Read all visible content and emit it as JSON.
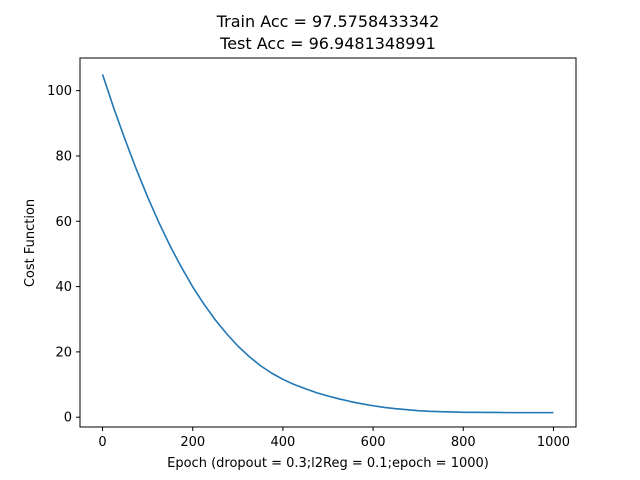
{
  "chart_data": {
    "type": "line",
    "title_lines": [
      "Train Acc = 97.5758433342",
      "Test Acc = 96.9481348991"
    ],
    "xlabel": "Epoch (dropout = 0.3;l2Reg = 0.1;epoch = 1000)",
    "ylabel": "Cost Function",
    "xlim": [
      -50,
      1050
    ],
    "ylim": [
      -3,
      110
    ],
    "xticks": [
      0,
      200,
      400,
      600,
      800,
      1000
    ],
    "yticks": [
      0,
      20,
      40,
      60,
      80,
      100
    ],
    "grid": false,
    "legend": "none",
    "series": [
      {
        "color": "#1f77b4",
        "x": [
          0,
          25,
          50,
          75,
          100,
          125,
          150,
          175,
          200,
          225,
          250,
          275,
          300,
          325,
          350,
          375,
          400,
          425,
          450,
          475,
          500,
          525,
          550,
          575,
          600,
          625,
          650,
          675,
          700,
          725,
          750,
          775,
          800,
          825,
          850,
          875,
          900,
          925,
          950,
          975,
          1000
        ],
        "y": [
          105,
          94.6,
          85.0,
          75.9,
          67.4,
          59.6,
          52.4,
          45.9,
          39.9,
          34.6,
          29.8,
          25.6,
          21.8,
          18.6,
          15.8,
          13.5,
          11.6,
          10.0,
          8.7,
          7.5,
          6.5,
          5.6,
          4.8,
          4.1,
          3.5,
          3.0,
          2.6,
          2.3,
          2.0,
          1.8,
          1.7,
          1.6,
          1.5,
          1.5,
          1.45,
          1.45,
          1.4,
          1.4,
          1.4,
          1.4,
          1.4
        ]
      }
    ]
  }
}
